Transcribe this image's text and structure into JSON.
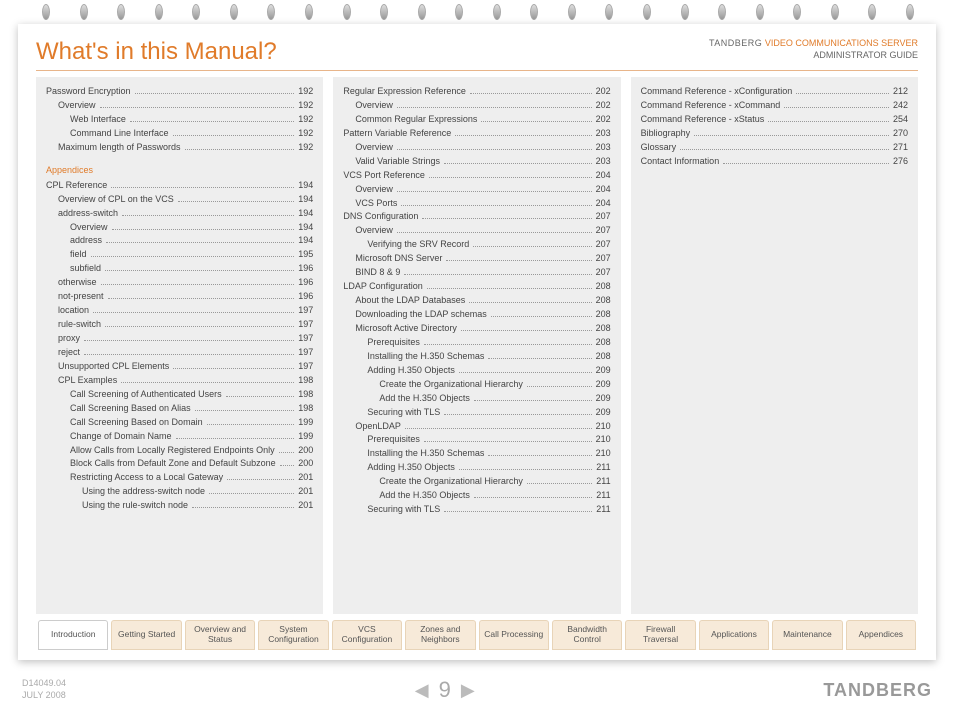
{
  "header": {
    "title": "What's in this Manual?",
    "brand_small": "TANDBERG",
    "product": "VIDEO COMMUNICATIONS SERVER",
    "subtitle": "ADMINISTRATOR GUIDE"
  },
  "columns": [
    {
      "entries": [
        {
          "label": "Password Encryption",
          "page": "192",
          "indent": 0
        },
        {
          "label": "Overview",
          "page": "192",
          "indent": 1
        },
        {
          "label": "Web Interface",
          "page": "192",
          "indent": 2
        },
        {
          "label": "Command Line Interface",
          "page": "192",
          "indent": 2
        },
        {
          "label": "Maximum length of Passwords",
          "page": "192",
          "indent": 1
        },
        {
          "heading": "Appendices"
        },
        {
          "label": "CPL Reference",
          "page": "194",
          "indent": 0
        },
        {
          "label": "Overview of CPL on the VCS",
          "page": "194",
          "indent": 1
        },
        {
          "label": "address-switch",
          "page": "194",
          "indent": 1
        },
        {
          "label": "Overview",
          "page": "194",
          "indent": 2
        },
        {
          "label": "address",
          "page": "194",
          "indent": 2
        },
        {
          "label": "field",
          "page": "195",
          "indent": 2
        },
        {
          "label": "subfield",
          "page": "196",
          "indent": 2
        },
        {
          "label": "otherwise",
          "page": "196",
          "indent": 1
        },
        {
          "label": "not-present",
          "page": "196",
          "indent": 1
        },
        {
          "label": "location",
          "page": "197",
          "indent": 1
        },
        {
          "label": "rule-switch",
          "page": "197",
          "indent": 1
        },
        {
          "label": "proxy",
          "page": "197",
          "indent": 1
        },
        {
          "label": "reject",
          "page": "197",
          "indent": 1
        },
        {
          "label": "Unsupported CPL Elements",
          "page": "197",
          "indent": 1
        },
        {
          "label": "CPL Examples",
          "page": "198",
          "indent": 1
        },
        {
          "label": "Call Screening of Authenticated Users",
          "page": "198",
          "indent": 2
        },
        {
          "label": "Call Screening Based on Alias",
          "page": "198",
          "indent": 2
        },
        {
          "label": "Call Screening Based on Domain",
          "page": "199",
          "indent": 2
        },
        {
          "label": "Change of Domain Name",
          "page": "199",
          "indent": 2
        },
        {
          "label": "Allow Calls from Locally Registered Endpoints Only",
          "page": "200",
          "indent": 2
        },
        {
          "label": "Block Calls from Default Zone and Default Subzone",
          "page": "200",
          "indent": 2
        },
        {
          "label": "Restricting Access to a Local Gateway",
          "page": "201",
          "indent": 2
        },
        {
          "label": "Using the address-switch node",
          "page": "201",
          "indent": 3
        },
        {
          "label": "Using the rule-switch node",
          "page": "201",
          "indent": 3
        }
      ]
    },
    {
      "entries": [
        {
          "label": "Regular Expression Reference",
          "page": "202",
          "indent": 0
        },
        {
          "label": "Overview",
          "page": "202",
          "indent": 1
        },
        {
          "label": "Common Regular Expressions",
          "page": "202",
          "indent": 1
        },
        {
          "label": "Pattern Variable Reference",
          "page": "203",
          "indent": 0
        },
        {
          "label": "Overview",
          "page": "203",
          "indent": 1
        },
        {
          "label": "Valid Variable Strings",
          "page": "203",
          "indent": 1
        },
        {
          "label": "VCS Port Reference",
          "page": "204",
          "indent": 0
        },
        {
          "label": "Overview",
          "page": "204",
          "indent": 1
        },
        {
          "label": "VCS Ports",
          "page": "204",
          "indent": 1
        },
        {
          "label": "DNS Configuration",
          "page": "207",
          "indent": 0
        },
        {
          "label": "Overview",
          "page": "207",
          "indent": 1
        },
        {
          "label": "Verifying the SRV Record",
          "page": "207",
          "indent": 2
        },
        {
          "label": "Microsoft DNS Server",
          "page": "207",
          "indent": 1
        },
        {
          "label": "BIND 8 & 9",
          "page": "207",
          "indent": 1
        },
        {
          "label": "LDAP Configuration",
          "page": "208",
          "indent": 0
        },
        {
          "label": "About the LDAP Databases",
          "page": "208",
          "indent": 1
        },
        {
          "label": "Downloading the LDAP schemas",
          "page": "208",
          "indent": 1
        },
        {
          "label": "Microsoft Active Directory",
          "page": "208",
          "indent": 1
        },
        {
          "label": "Prerequisites",
          "page": "208",
          "indent": 2
        },
        {
          "label": "Installing the H.350 Schemas",
          "page": "208",
          "indent": 2
        },
        {
          "label": "Adding H.350 Objects",
          "page": "209",
          "indent": 2
        },
        {
          "label": "Create the Organizational Hierarchy",
          "page": "209",
          "indent": 3
        },
        {
          "label": "Add the H.350 Objects",
          "page": "209",
          "indent": 3
        },
        {
          "label": "Securing with TLS",
          "page": "209",
          "indent": 2
        },
        {
          "label": "OpenLDAP",
          "page": "210",
          "indent": 1
        },
        {
          "label": "Prerequisites",
          "page": "210",
          "indent": 2
        },
        {
          "label": "Installing the H.350 Schemas",
          "page": "210",
          "indent": 2
        },
        {
          "label": "Adding H.350 Objects",
          "page": "211",
          "indent": 2
        },
        {
          "label": "Create the Organizational Hierarchy",
          "page": "211",
          "indent": 3
        },
        {
          "label": "Add the H.350 Objects",
          "page": "211",
          "indent": 3
        },
        {
          "label": "Securing with TLS",
          "page": "211",
          "indent": 2
        }
      ]
    },
    {
      "entries": [
        {
          "label": "Command Reference - xConfiguration",
          "page": "212",
          "indent": 0
        },
        {
          "label": "Command Reference - xCommand",
          "page": "242",
          "indent": 0
        },
        {
          "label": "Command Reference - xStatus",
          "page": "254",
          "indent": 0
        },
        {
          "label": "Bibliography",
          "page": "270",
          "indent": 0
        },
        {
          "label": "Glossary",
          "page": "271",
          "indent": 0
        },
        {
          "label": "Contact Information",
          "page": "276",
          "indent": 0
        }
      ]
    }
  ],
  "tabs": [
    {
      "label": "Introduction",
      "active": true
    },
    {
      "label": "Getting Started",
      "active": false
    },
    {
      "label": "Overview and Status",
      "active": false
    },
    {
      "label": "System Configuration",
      "active": false
    },
    {
      "label": "VCS Configuration",
      "active": false
    },
    {
      "label": "Zones and Neighbors",
      "active": false
    },
    {
      "label": "Call Processing",
      "active": false
    },
    {
      "label": "Bandwidth Control",
      "active": false
    },
    {
      "label": "Firewall Traversal",
      "active": false
    },
    {
      "label": "Applications",
      "active": false
    },
    {
      "label": "Maintenance",
      "active": false
    },
    {
      "label": "Appendices",
      "active": false
    }
  ],
  "footer": {
    "doc_id": "D14049.04",
    "date": "JULY 2008",
    "page_number": "9",
    "brand_large": "TANDBERG"
  },
  "style": {
    "accent_color": "#e07b2a",
    "column_bg": "#eeeeee",
    "tab_bg": "#f7ead9",
    "tab_active_bg": "#ffffff",
    "ring_count": 24
  }
}
